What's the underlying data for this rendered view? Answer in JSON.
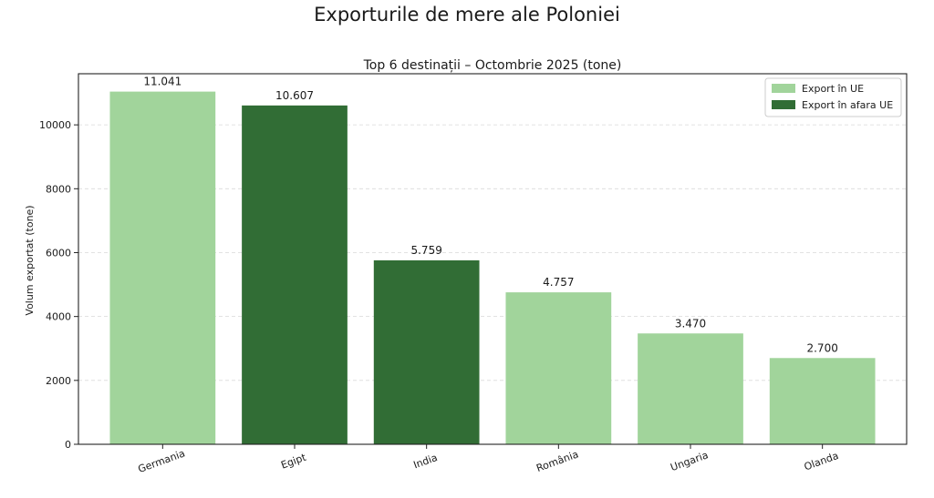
{
  "figure": {
    "title": "Exporturile de mere ale Poloniei"
  },
  "chart_data": {
    "type": "bar",
    "title": "Top 6 destinații – Octombrie 2025 (tone)",
    "xlabel": "",
    "ylabel": "Volum exportat (tone)",
    "ylim": [
      0,
      11600
    ],
    "yticks": [
      "0",
      "2000",
      "4000",
      "6000",
      "8000",
      "10000"
    ],
    "ytick_values": [
      0,
      2000,
      4000,
      6000,
      8000,
      10000
    ],
    "grid": "horizontal dashed",
    "legend_position": "top-right",
    "categories": [
      "Germania",
      "Egipt",
      "India",
      "România",
      "Ungaria",
      "Olanda"
    ],
    "values": [
      11041,
      10607,
      5759,
      4757,
      3470,
      2700
    ],
    "value_labels": [
      "11.041",
      "10.607",
      "5.759",
      "4.757",
      "3.470",
      "2.700"
    ],
    "groups": [
      "UE",
      "non-UE",
      "non-UE",
      "UE",
      "UE",
      "UE"
    ],
    "legend": [
      {
        "name": "Export în UE",
        "group": "UE",
        "color": "#a1d49b"
      },
      {
        "name": "Export în afara UE",
        "group": "non-UE",
        "color": "#316d35"
      }
    ]
  }
}
